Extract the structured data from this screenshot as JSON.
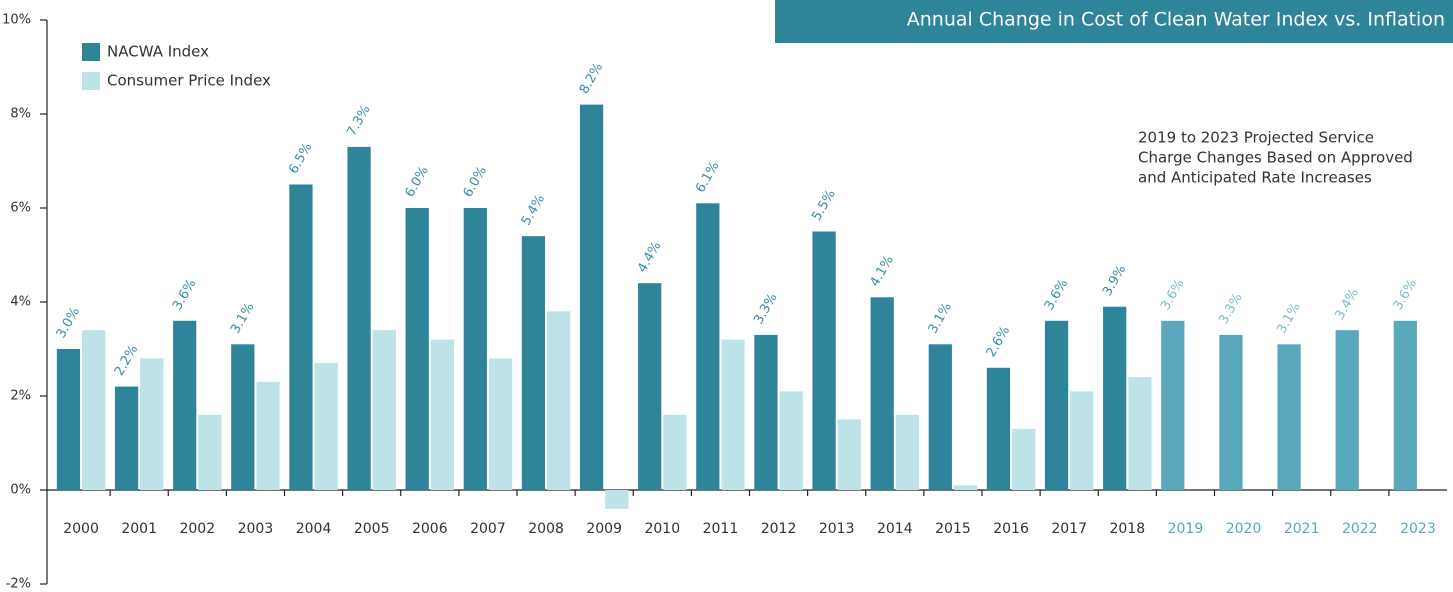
{
  "chart_data": {
    "type": "bar",
    "title": "Annual Change in Cost of Clean Water Index vs. Inflation",
    "annotation": [
      "2019 to 2023 Projected Service",
      "Charge Changes Based on Approved",
      "and Anticipated Rate Increases"
    ],
    "categories": [
      "2000",
      "2001",
      "2002",
      "2003",
      "2004",
      "2005",
      "2006",
      "2007",
      "2008",
      "2009",
      "2010",
      "2011",
      "2012",
      "2013",
      "2014",
      "2015",
      "2016",
      "2017",
      "2018",
      "2019",
      "2020",
      "2021",
      "2022",
      "2023"
    ],
    "category_colors": [
      "#333333",
      "#333333",
      "#333333",
      "#333333",
      "#333333",
      "#333333",
      "#333333",
      "#333333",
      "#333333",
      "#333333",
      "#333333",
      "#333333",
      "#333333",
      "#333333",
      "#333333",
      "#333333",
      "#333333",
      "#333333",
      "#333333",
      "#5aa8bb",
      "#5aa8bb",
      "#5aa8bb",
      "#5aa8bb",
      "#5aa8bb"
    ],
    "series": [
      {
        "name": "NACWA Index",
        "color": "#2e8499",
        "colors": [
          "#2e8499",
          "#2e8499",
          "#2e8499",
          "#2e8499",
          "#2e8499",
          "#2e8499",
          "#2e8499",
          "#2e8499",
          "#2e8499",
          "#2e8499",
          "#2e8499",
          "#2e8499",
          "#2e8499",
          "#2e8499",
          "#2e8499",
          "#2e8499",
          "#2e8499",
          "#2e8499",
          "#2e8499",
          "#5aa8bb",
          "#5aa8bb",
          "#5aa8bb",
          "#5aa8bb",
          "#5aa8bb"
        ],
        "values": [
          3.0,
          2.2,
          3.6,
          3.1,
          6.5,
          7.3,
          6.0,
          6.0,
          5.4,
          8.2,
          4.4,
          6.1,
          3.3,
          5.5,
          4.1,
          3.1,
          2.6,
          3.6,
          3.9,
          3.6,
          3.3,
          3.1,
          3.4,
          3.6
        ],
        "value_labels": [
          "3.0%",
          "2.2%",
          "3.6%",
          "3.1%",
          "6.5%",
          "7.3%",
          "6.0%",
          "6.0%",
          "5.4%",
          "8.2%",
          "4.4%",
          "6.1%",
          "3.3%",
          "5.5%",
          "4.1%",
          "3.1%",
          "2.6%",
          "3.6%",
          "3.9%",
          "3.6%",
          "3.3%",
          "3.1%",
          "3.4%",
          "3.6%"
        ],
        "label_colors": [
          "#3a8ea5",
          "#3a8ea5",
          "#3a8ea5",
          "#3a8ea5",
          "#3a8ea5",
          "#3a8ea5",
          "#3a8ea5",
          "#3a8ea5",
          "#3a8ea5",
          "#3a8ea5",
          "#3a8ea5",
          "#3a8ea5",
          "#3a8ea5",
          "#3a8ea5",
          "#3a8ea5",
          "#3a8ea5",
          "#3a8ea5",
          "#3a8ea5",
          "#3a8ea5",
          "#7cbccc",
          "#7cbccc",
          "#7cbccc",
          "#7cbccc",
          "#7cbccc"
        ]
      },
      {
        "name": "Consumer Price Index",
        "color": "#bde3e8",
        "values": [
          3.4,
          2.8,
          1.6,
          2.3,
          2.7,
          3.4,
          3.2,
          2.8,
          3.8,
          -0.4,
          1.6,
          3.2,
          2.1,
          1.5,
          1.6,
          0.1,
          1.3,
          2.1,
          2.4,
          null,
          null,
          null,
          null,
          null
        ]
      }
    ],
    "ylim": [
      -2,
      10
    ],
    "yticks": [
      {
        "value": -2,
        "label": "-2%"
      },
      {
        "value": 0,
        "label": "0%"
      },
      {
        "value": 2,
        "label": "2%"
      },
      {
        "value": 4,
        "label": "4%"
      },
      {
        "value": 6,
        "label": "6%"
      },
      {
        "value": 8,
        "label": "8%"
      },
      {
        "value": 10,
        "label": "10%"
      }
    ],
    "grid": false
  }
}
